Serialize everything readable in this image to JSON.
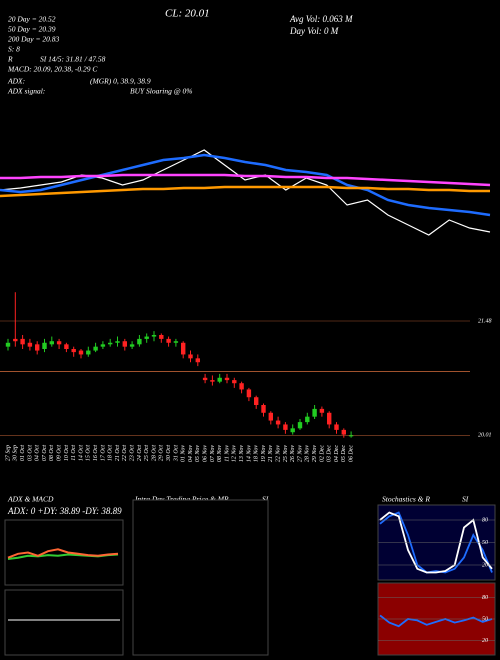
{
  "chart_data": {
    "type": "candlestick",
    "header": {
      "ma20": "20 Day = 20.52",
      "ma50": "50 Day = 20.39",
      "ma200": "200 Day = 20.83",
      "close": "CL: 20.01",
      "avg_vol": "Avg Vol: 0.063 M",
      "day_vol": "Day Vol: 0  M",
      "r": "R",
      "s": "S: 8",
      "si": "SI 14/5: 31.81 / 47.58",
      "macd": "MACD: 20.09, 20.38, -0.29 C",
      "adx": "ADX:",
      "adx_vals": "(MGR) 0, 38.9, 38.9",
      "adx_signal": "ADX  signal:",
      "signal": "BUY Sloaring @ 0%"
    },
    "ma_ylim": [
      19.4,
      22.4
    ],
    "ma_series": [
      {
        "color": "#ffffff",
        "values": [
          20.5,
          20.52,
          20.55,
          20.58,
          20.65,
          20.62,
          20.55,
          20.6,
          20.7,
          20.8,
          20.9,
          20.75,
          20.6,
          20.65,
          20.5,
          20.62,
          20.55,
          20.35,
          20.4,
          20.25,
          20.15,
          20.05,
          20.2,
          20.12,
          20.08
        ]
      },
      {
        "color": "#1e6cff",
        "values": [
          20.5,
          20.48,
          20.5,
          20.55,
          20.6,
          20.65,
          20.7,
          20.75,
          20.8,
          20.82,
          20.85,
          20.82,
          20.78,
          20.75,
          20.7,
          20.68,
          20.65,
          20.55,
          20.5,
          20.4,
          20.35,
          20.32,
          20.3,
          20.28,
          20.25
        ]
      },
      {
        "color": "#ff44ff",
        "values": [
          20.62,
          20.62,
          20.63,
          20.63,
          20.64,
          20.64,
          20.65,
          20.65,
          20.65,
          20.65,
          20.65,
          20.65,
          20.64,
          20.64,
          20.63,
          20.63,
          20.62,
          20.62,
          20.61,
          20.6,
          20.59,
          20.58,
          20.57,
          20.56,
          20.55
        ]
      },
      {
        "color": "#ff9900",
        "values": [
          20.44,
          20.45,
          20.46,
          20.47,
          20.48,
          20.49,
          20.5,
          20.51,
          20.51,
          20.52,
          20.52,
          20.53,
          20.53,
          20.53,
          20.53,
          20.53,
          20.53,
          20.52,
          20.52,
          20.51,
          20.51,
          20.5,
          20.5,
          20.49,
          20.49
        ]
      }
    ],
    "ylim": [
      19.95,
      21.75
    ],
    "yticks": [
      21.48,
      20.01
    ],
    "ref_line": 20.83,
    "categories": [
      "27 Sep",
      "30 Sep",
      "01 Oct",
      "03 Oct",
      "04 Oct",
      "07 Oct",
      "08 Oct",
      "09 Oct",
      "10 Oct",
      "11 Oct",
      "14 Oct",
      "15 Oct",
      "16 Oct",
      "17 Oct",
      "18 Oct",
      "21 Oct",
      "22 Oct",
      "23 Oct",
      "24 Oct",
      "25 Oct",
      "28 Oct",
      "29 Oct",
      "30 Oct",
      "31 Oct",
      "01 Nov",
      "04 Nov",
      "05 Nov",
      "06 Nov",
      "07 Nov",
      "08 Nov",
      "11 Nov",
      "12 Nov",
      "13 Nov",
      "14 Nov",
      "18 Nov",
      "19 Nov",
      "21 Nov",
      "22 Nov",
      "25 Nov",
      "26 Nov",
      "27 Nov",
      "28 Nov",
      "29 Nov",
      "02 Dec",
      "03 Dec",
      "04 Dec",
      "05 Dec",
      "06 Dec"
    ],
    "ohlc": [
      [
        21.15,
        21.25,
        21.1,
        21.2
      ],
      [
        21.25,
        21.85,
        21.15,
        21.22
      ],
      [
        21.25,
        21.3,
        21.12,
        21.18
      ],
      [
        21.2,
        21.25,
        21.1,
        21.15
      ],
      [
        21.18,
        21.22,
        21.05,
        21.1
      ],
      [
        21.12,
        21.25,
        21.08,
        21.2
      ],
      [
        21.18,
        21.28,
        21.15,
        21.22
      ],
      [
        21.22,
        21.25,
        21.12,
        21.18
      ],
      [
        21.18,
        21.2,
        21.08,
        21.12
      ],
      [
        21.12,
        21.15,
        21.02,
        21.08
      ],
      [
        21.1,
        21.12,
        21.0,
        21.05
      ],
      [
        21.05,
        21.15,
        21.02,
        21.1
      ],
      [
        21.1,
        21.2,
        21.08,
        21.15
      ],
      [
        21.15,
        21.22,
        21.12,
        21.18
      ],
      [
        21.18,
        21.25,
        21.15,
        21.2
      ],
      [
        21.2,
        21.28,
        21.15,
        21.22
      ],
      [
        21.22,
        21.25,
        21.1,
        21.15
      ],
      [
        21.15,
        21.22,
        21.12,
        21.18
      ],
      [
        21.18,
        21.3,
        21.15,
        21.25
      ],
      [
        21.25,
        21.32,
        21.2,
        21.28
      ],
      [
        21.28,
        21.35,
        21.22,
        21.3
      ],
      [
        21.3,
        21.32,
        21.2,
        21.25
      ],
      [
        21.25,
        21.28,
        21.15,
        21.2
      ],
      [
        21.2,
        21.25,
        21.15,
        21.22
      ],
      [
        21.2,
        21.22,
        21.0,
        21.05
      ],
      [
        21.05,
        21.1,
        20.95,
        21.0
      ],
      [
        21.0,
        21.05,
        20.9,
        20.95
      ],
      [
        20.75,
        20.8,
        20.68,
        20.72
      ],
      [
        20.72,
        20.78,
        20.65,
        20.7
      ],
      [
        20.7,
        20.8,
        20.68,
        20.75
      ],
      [
        20.75,
        20.8,
        20.68,
        20.72
      ],
      [
        20.72,
        20.75,
        20.62,
        20.68
      ],
      [
        20.68,
        20.7,
        20.55,
        20.6
      ],
      [
        20.6,
        20.62,
        20.45,
        20.5
      ],
      [
        20.5,
        20.52,
        20.35,
        20.4
      ],
      [
        20.4,
        20.42,
        20.25,
        20.3
      ],
      [
        20.3,
        20.32,
        20.15,
        20.2
      ],
      [
        20.2,
        20.25,
        20.1,
        20.15
      ],
      [
        20.15,
        20.18,
        20.03,
        20.08
      ],
      [
        20.05,
        20.15,
        20.02,
        20.1
      ],
      [
        20.1,
        20.22,
        20.08,
        20.18
      ],
      [
        20.18,
        20.3,
        20.15,
        20.25
      ],
      [
        20.25,
        20.4,
        20.22,
        20.35
      ],
      [
        20.35,
        20.38,
        20.25,
        20.3
      ],
      [
        20.3,
        20.32,
        20.1,
        20.15
      ],
      [
        20.15,
        20.18,
        20.03,
        20.08
      ],
      [
        20.08,
        20.1,
        19.98,
        20.02
      ],
      [
        20.0,
        20.06,
        19.98,
        20.01
      ]
    ],
    "panels": {
      "adx_title": "ADX & MACD",
      "adx_text": "ADX: 0  +DY: 38.89  -DY: 38.89",
      "intra_title": "Intra Day Trading Price & MR",
      "intra_si": "SI",
      "stoch_title": "Stochastics & R",
      "stoch_si": "SI",
      "adx_series": [
        {
          "color": "#33cc33",
          "values": [
            40,
            42,
            45,
            44,
            46,
            45,
            47,
            46,
            45,
            44,
            46,
            47
          ]
        },
        {
          "color": "#ff6633",
          "values": [
            42,
            48,
            50,
            45,
            52,
            55,
            50,
            48,
            46,
            45,
            47,
            48
          ]
        }
      ],
      "stoch_ticks": [
        80,
        50,
        20
      ],
      "stoch_series": [
        {
          "color": "#1e6cff",
          "values": [
            75,
            85,
            90,
            60,
            20,
            10,
            12,
            10,
            15,
            30,
            60,
            40,
            10
          ]
        },
        {
          "color": "#ffffff",
          "values": [
            80,
            90,
            85,
            40,
            15,
            10,
            10,
            12,
            20,
            70,
            80,
            30,
            15
          ]
        }
      ],
      "rsi_ticks": [
        80,
        50,
        20
      ],
      "rsi_series": [
        {
          "color": "#1e6cff",
          "values": [
            55,
            45,
            40,
            50,
            48,
            42,
            46,
            50,
            45,
            48,
            52,
            46,
            50
          ]
        }
      ]
    }
  }
}
